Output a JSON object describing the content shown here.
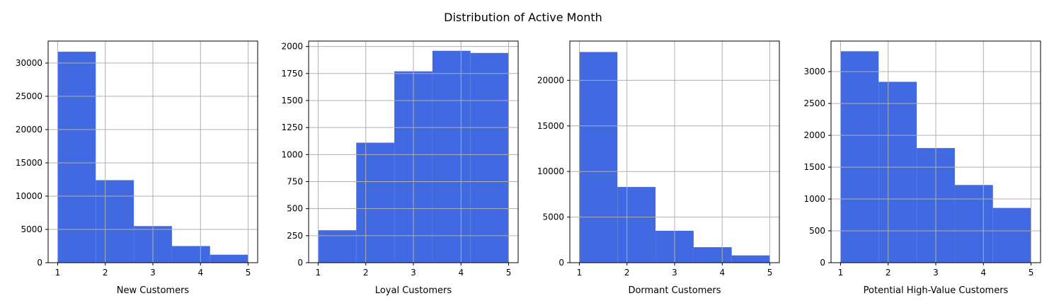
{
  "figure": {
    "title": "Distribution of Active Month"
  },
  "style": {
    "bar_color": "#4169e1",
    "grid_color": "#b0b0b0",
    "axis_color": "#000000"
  },
  "chart_data": [
    {
      "type": "bar",
      "histogram": true,
      "xlabel": "New Customers",
      "ylabel": "",
      "bin_edges": [
        1,
        1.8,
        2.6,
        3.4,
        4.2,
        5
      ],
      "values": [
        31700,
        12400,
        5500,
        2500,
        1200
      ],
      "xlim": [
        0.8,
        5.2
      ],
      "ylim": [
        0,
        33300
      ],
      "xticks": [
        1,
        2,
        3,
        4,
        5
      ],
      "yticks": [
        0,
        5000,
        10000,
        15000,
        20000,
        25000,
        30000
      ],
      "grid": true
    },
    {
      "type": "bar",
      "histogram": true,
      "xlabel": "Loyal Customers",
      "ylabel": "",
      "bin_edges": [
        1,
        1.8,
        2.6,
        3.4,
        4.2,
        5
      ],
      "values": [
        300,
        1110,
        1770,
        1960,
        1940
      ],
      "xlim": [
        0.8,
        5.2
      ],
      "ylim": [
        0,
        2050
      ],
      "xticks": [
        1,
        2,
        3,
        4,
        5
      ],
      "yticks": [
        0,
        250,
        500,
        750,
        1000,
        1250,
        1500,
        1750,
        2000
      ],
      "grid": true
    },
    {
      "type": "bar",
      "histogram": true,
      "xlabel": "Dormant Customers",
      "ylabel": "",
      "bin_edges": [
        1,
        1.8,
        2.6,
        3.4,
        4.2,
        5
      ],
      "values": [
        23100,
        8300,
        3500,
        1700,
        800
      ],
      "xlim": [
        0.8,
        5.2
      ],
      "ylim": [
        0,
        24300
      ],
      "xticks": [
        1,
        2,
        3,
        4,
        5
      ],
      "yticks": [
        0,
        5000,
        10000,
        15000,
        20000
      ],
      "grid": true
    },
    {
      "type": "bar",
      "histogram": true,
      "xlabel": "Potential High-Value Customers",
      "ylabel": "",
      "bin_edges": [
        1,
        1.8,
        2.6,
        3.4,
        4.2,
        5
      ],
      "values": [
        3320,
        2840,
        1800,
        1220,
        860
      ],
      "xlim": [
        0.8,
        5.2
      ],
      "ylim": [
        0,
        3480
      ],
      "xticks": [
        1,
        2,
        3,
        4,
        5
      ],
      "yticks": [
        0,
        500,
        1000,
        1500,
        2000,
        2500,
        3000
      ],
      "grid": true
    }
  ]
}
